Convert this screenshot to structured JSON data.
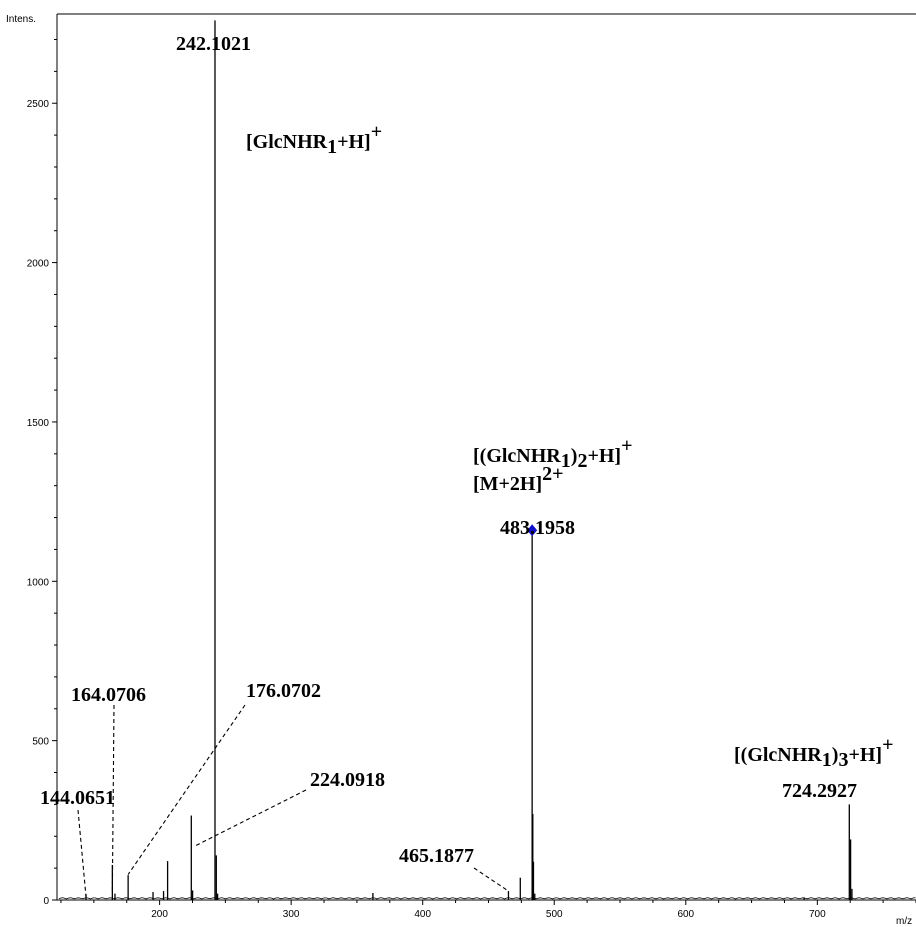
{
  "chart_data": {
    "type": "line",
    "title": "",
    "ylabel": "Intens.",
    "xlabel": "m/z",
    "xlim": [
      122,
      775
    ],
    "ylim": [
      0,
      2780
    ],
    "x_ticks": [
      200,
      300,
      400,
      500,
      600,
      700
    ],
    "y_ticks": [
      0,
      500,
      1000,
      1500,
      2000,
      2500
    ],
    "grid": false,
    "legend": "none",
    "colors": {
      "spectrum": "#000000",
      "precursor_marker": "#1010cc"
    },
    "peaks": [
      {
        "mz": 144.0651,
        "intensity": 18
      },
      {
        "mz": 164.0706,
        "intensity": 110
      },
      {
        "mz": 166.07,
        "intensity": 20
      },
      {
        "mz": 176.0702,
        "intensity": 78
      },
      {
        "mz": 195.0,
        "intensity": 25
      },
      {
        "mz": 203.0,
        "intensity": 28
      },
      {
        "mz": 206.08,
        "intensity": 122
      },
      {
        "mz": 224.0918,
        "intensity": 265
      },
      {
        "mz": 225.09,
        "intensity": 30
      },
      {
        "mz": 242.1021,
        "intensity": 2760
      },
      {
        "mz": 243.1,
        "intensity": 140
      },
      {
        "mz": 244.1,
        "intensity": 20
      },
      {
        "mz": 362.15,
        "intensity": 22
      },
      {
        "mz": 465.1877,
        "intensity": 28
      },
      {
        "mz": 474.18,
        "intensity": 70
      },
      {
        "mz": 483.1958,
        "intensity": 1160
      },
      {
        "mz": 483.7,
        "intensity": 270
      },
      {
        "mz": 484.2,
        "intensity": 120
      },
      {
        "mz": 485.2,
        "intensity": 20
      },
      {
        "mz": 690.0,
        "intensity": 8
      },
      {
        "mz": 724.2927,
        "intensity": 300
      },
      {
        "mz": 725.29,
        "intensity": 190
      },
      {
        "mz": 726.3,
        "intensity": 35
      }
    ],
    "precursor_marker_mz": 483.1958,
    "labels": {
      "p144": "144.0651",
      "p164": "164.0706",
      "p176": "176.0702",
      "p224": "224.0918",
      "p242": "242.1021",
      "p465": "465.1877",
      "p483": "483.1958",
      "p724": "724.2927"
    },
    "annotations": {
      "a242": {
        "main": "[GlcNHR",
        "sub": "1",
        "after": "+H]",
        "sup": "+"
      },
      "a483_line1": {
        "main": "[(GlcNHR",
        "sub": "1",
        "after": ")",
        "sub2": "2",
        "after2": "+H]",
        "sup": "+"
      },
      "a483_line2": {
        "main": "[M+2H]",
        "sup": "2+"
      },
      "a724": {
        "main": "[(GlcNHR",
        "sub": "1",
        "after": ")",
        "sub2": "3",
        "after2": "+H]",
        "sup": "+"
      }
    }
  }
}
